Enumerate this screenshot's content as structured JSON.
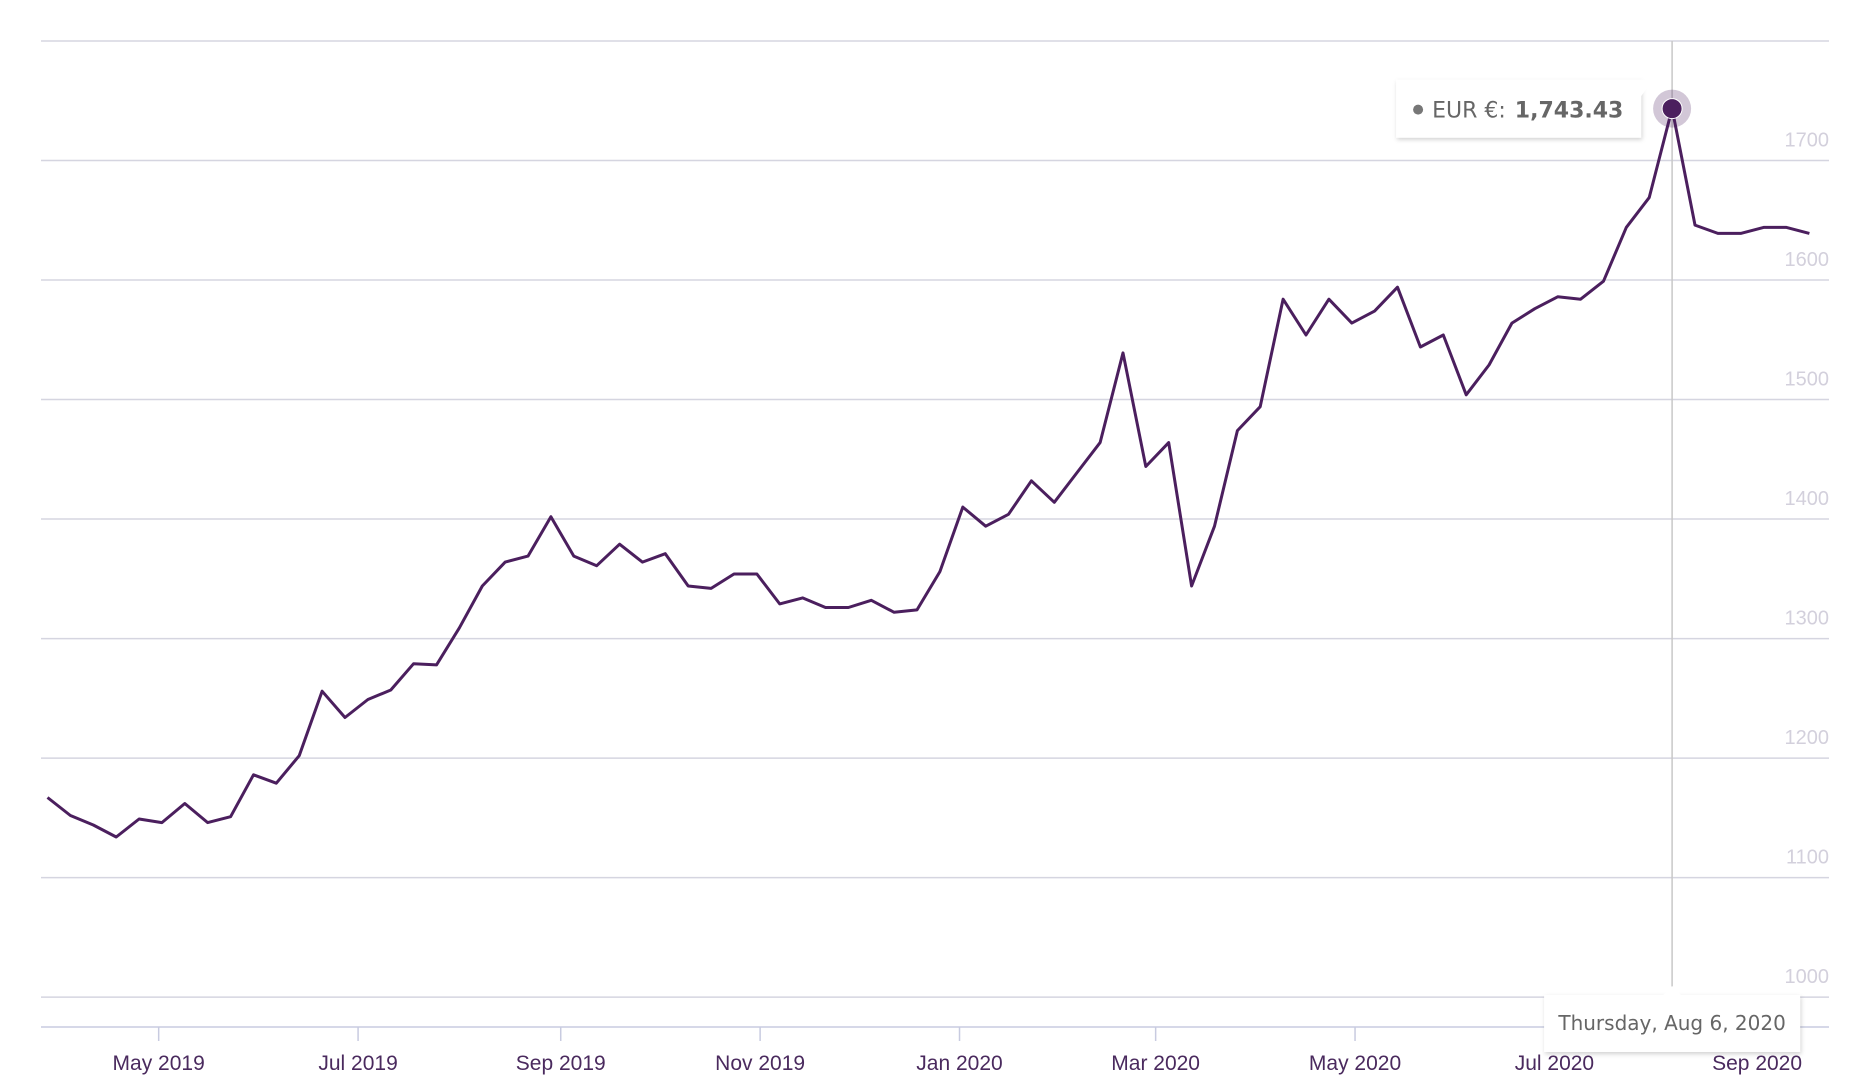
{
  "chart_data": {
    "type": "line",
    "x": [
      "2019-03-28",
      "2019-04-04",
      "2019-04-11",
      "2019-04-18",
      "2019-04-25",
      "2019-05-02",
      "2019-05-09",
      "2019-05-16",
      "2019-05-23",
      "2019-05-30",
      "2019-06-06",
      "2019-06-13",
      "2019-06-20",
      "2019-06-27",
      "2019-07-04",
      "2019-07-11",
      "2019-07-18",
      "2019-07-25",
      "2019-08-01",
      "2019-08-08",
      "2019-08-15",
      "2019-08-22",
      "2019-08-29",
      "2019-09-05",
      "2019-09-12",
      "2019-09-19",
      "2019-09-26",
      "2019-10-03",
      "2019-10-10",
      "2019-10-17",
      "2019-10-24",
      "2019-10-31",
      "2019-11-07",
      "2019-11-14",
      "2019-11-21",
      "2019-11-28",
      "2019-12-05",
      "2019-12-12",
      "2019-12-19",
      "2019-12-26",
      "2020-01-02",
      "2020-01-09",
      "2020-01-16",
      "2020-01-23",
      "2020-01-30",
      "2020-02-06",
      "2020-02-13",
      "2020-02-20",
      "2020-02-27",
      "2020-03-05",
      "2020-03-12",
      "2020-03-19",
      "2020-03-26",
      "2020-04-02",
      "2020-04-09",
      "2020-04-16",
      "2020-04-23",
      "2020-04-30",
      "2020-05-07",
      "2020-05-14",
      "2020-05-21",
      "2020-05-28",
      "2020-06-04",
      "2020-06-11",
      "2020-06-18",
      "2020-06-25",
      "2020-07-02",
      "2020-07-09",
      "2020-07-16",
      "2020-07-23",
      "2020-07-30",
      "2020-08-06",
      "2020-08-13",
      "2020-08-20",
      "2020-08-27",
      "2020-09-03",
      "2020-09-10",
      "2020-09-17"
    ],
    "series": [
      {
        "name": "EUR €",
        "color": "#4b1f5e",
        "values": [
          1167,
          1152,
          1144,
          1134,
          1149,
          1146,
          1162,
          1146,
          1151,
          1186,
          1179,
          1202,
          1256,
          1234,
          1249,
          1257,
          1279,
          1278,
          1309,
          1344,
          1364,
          1369,
          1402,
          1369,
          1361,
          1379,
          1364,
          1371,
          1344,
          1342,
          1354,
          1354,
          1329,
          1334,
          1326,
          1326,
          1332,
          1322,
          1324,
          1356,
          1410,
          1394,
          1404,
          1432,
          1414,
          1439,
          1464,
          1539,
          1444,
          1464,
          1344,
          1394,
          1474,
          1494,
          1584,
          1554,
          1584,
          1564,
          1574,
          1594,
          1544,
          1554,
          1504,
          1529,
          1564,
          1576,
          1586,
          1584,
          1599,
          1644,
          1669,
          1743.43,
          1646,
          1639,
          1639,
          1644,
          1644,
          1639
        ]
      }
    ],
    "xlim": [
      "2019-03-26",
      "2020-09-23"
    ],
    "xticks": [
      {
        "value": "2019-05-01",
        "label": "May 2019"
      },
      {
        "value": "2019-07-01",
        "label": "Jul 2019"
      },
      {
        "value": "2019-09-01",
        "label": "Sep 2019"
      },
      {
        "value": "2019-11-01",
        "label": "Nov 2019"
      },
      {
        "value": "2020-01-01",
        "label": "Jan 2020"
      },
      {
        "value": "2020-03-01",
        "label": "Mar 2020"
      },
      {
        "value": "2020-05-01",
        "label": "May 2020"
      },
      {
        "value": "2020-07-01",
        "label": "Jul 2020"
      },
      {
        "value": "2020-09-01",
        "label": "Sep 2020"
      }
    ],
    "ylim": [
      975,
      1800
    ],
    "yticks": [
      1000,
      1100,
      1200,
      1300,
      1400,
      1500,
      1600,
      1700
    ],
    "grid": true,
    "tooltip": {
      "x": "2020-08-06",
      "label": "EUR €:",
      "value_label": "1,743.43",
      "date": "Thursday, Aug 6, 2020"
    }
  }
}
